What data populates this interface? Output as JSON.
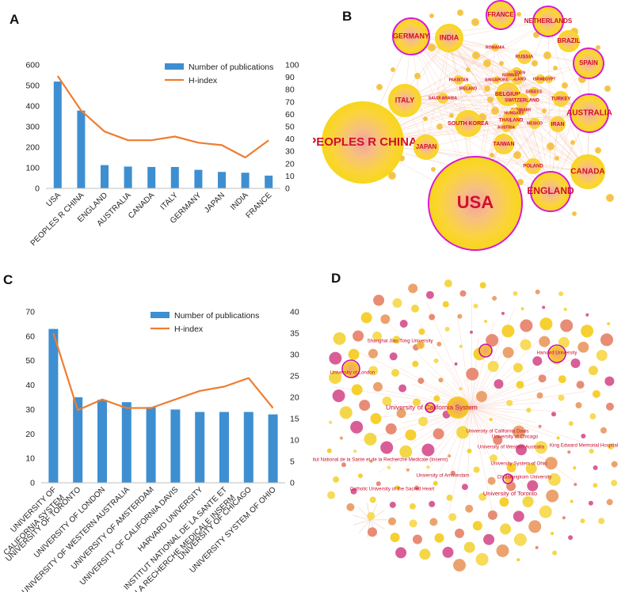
{
  "panels": {
    "a": "A",
    "b": "B",
    "c": "C",
    "d": "D"
  },
  "chart_data": [
    {
      "panel": "A",
      "type": "bar",
      "categories": [
        "USA",
        "PEOPLES R CHINA",
        "ENGLAND",
        "AUSTRALIA",
        "CANADA",
        "ITALY",
        "GERMANY",
        "JAPAN",
        "INDIA",
        "FRANCE"
      ],
      "series": [
        {
          "name": "Number of publications",
          "axis": "left",
          "kind": "bar",
          "color": "#3d8fd1",
          "values": [
            519,
            378,
            113,
            106,
            104,
            104,
            90,
            80,
            76,
            62
          ]
        },
        {
          "name": "H-index",
          "axis": "right",
          "kind": "line",
          "color": "#ef7d31",
          "values": [
            91,
            63,
            46,
            39,
            39,
            42,
            37,
            35,
            25,
            39
          ]
        }
      ],
      "ylim_left": [
        0,
        600
      ],
      "yticks_left": [
        0,
        100,
        200,
        300,
        400,
        500,
        600
      ],
      "ylim_right": [
        0,
        100
      ],
      "yticks_right": [
        0,
        10,
        20,
        30,
        40,
        50,
        60,
        70,
        80,
        90,
        100
      ],
      "legend_position": "top-right"
    },
    {
      "panel": "C",
      "type": "bar",
      "categories": [
        [
          "UNIVERSITY OF",
          "CALIFORNIA SYSTEM"
        ],
        [
          "UNIVERSITY OF TORONTO"
        ],
        [
          "UNIVERSITY OF LONDON"
        ],
        [
          "UNIVERSITY OF WESTERN AUSTRALIA"
        ],
        [
          "UNIVERSITY OF AMSTERDAM"
        ],
        [
          "UNIVERSITY OF CALIFORNIA DAVIS"
        ],
        [
          "HARVARD UNIVERSITY"
        ],
        [
          "INSTITUT NATIONAL DE LA SANTE ET",
          "DE LA RECHERCHE MEDICALE INSERM"
        ],
        [
          "UNIVERSITY OF CHICAGO"
        ],
        [
          "UNIVERSITY SYSTEM OF OHIO"
        ]
      ],
      "series": [
        {
          "name": "Number of publications",
          "axis": "left",
          "kind": "bar",
          "color": "#3d8fd1",
          "values": [
            63,
            35,
            34,
            33,
            31,
            30,
            29,
            29,
            29,
            28
          ]
        },
        {
          "name": "H-index",
          "axis": "right",
          "kind": "line",
          "color": "#ef7d31",
          "values": [
            35,
            17,
            19.5,
            17.5,
            17.5,
            19.5,
            21.5,
            22.5,
            24.5,
            17.5
          ]
        }
      ],
      "ylim_left": [
        0,
        70
      ],
      "yticks_left": [
        0,
        10,
        20,
        30,
        40,
        50,
        60,
        70
      ],
      "ylim_right": [
        0,
        40
      ],
      "yticks_right": [
        0,
        5,
        10,
        15,
        20,
        25,
        30,
        35,
        40
      ],
      "legend_position": "top-right"
    }
  ],
  "network_b": {
    "colors": {
      "node_fill": "#fbd000",
      "node_core": "#f4a3a0",
      "ring": "#d61ad2",
      "label": "#d0102a"
    },
    "nodes": [
      {
        "label": "USA",
        "highlight": true
      },
      {
        "label": "PEOPLES R CHINA",
        "highlight": false
      },
      {
        "label": "ENGLAND",
        "highlight": true
      },
      {
        "label": "CANADA",
        "highlight": false
      },
      {
        "label": "AUSTRALIA",
        "highlight": true
      },
      {
        "label": "GERMANY",
        "highlight": true
      },
      {
        "label": "FRANCE",
        "highlight": true
      },
      {
        "label": "NETHERLANDS",
        "highlight": true
      },
      {
        "label": "SPAIN",
        "highlight": true
      },
      {
        "label": "ITALY",
        "highlight": false
      },
      {
        "label": "INDIA",
        "highlight": false
      },
      {
        "label": "JAPAN",
        "highlight": false
      },
      {
        "label": "BRAZIL",
        "highlight": false
      },
      {
        "label": "SOUTH KOREA",
        "highlight": false
      },
      {
        "label": "IRAN",
        "highlight": false
      },
      {
        "label": "TAIWAN",
        "highlight": false
      },
      {
        "label": "BELGIUM",
        "highlight": false
      },
      {
        "label": "TURKEY",
        "highlight": false
      },
      {
        "label": "SWITZERLAND",
        "highlight": false
      },
      {
        "label": "THAILAND",
        "highlight": false
      },
      {
        "label": "POLAND",
        "highlight": false
      },
      {
        "label": "RUSSIA",
        "highlight": false
      },
      {
        "label": "SWEDEN",
        "highlight": false
      },
      {
        "label": "FINLAND",
        "highlight": false
      },
      {
        "label": "ISRAEL",
        "highlight": false
      },
      {
        "label": "NORWAY",
        "highlight": false
      },
      {
        "label": "GREECE",
        "highlight": false
      },
      {
        "label": "DENMARK",
        "highlight": false
      },
      {
        "label": "HUNGARY",
        "highlight": false
      },
      {
        "label": "AUSTRIA",
        "highlight": false
      },
      {
        "label": "MEXICO",
        "highlight": false
      },
      {
        "label": "SAUDI ARABIA",
        "highlight": false
      },
      {
        "label": "PAKISTAN",
        "highlight": false
      },
      {
        "label": "IRELAND",
        "highlight": false
      },
      {
        "label": "ROMANIA",
        "highlight": false
      },
      {
        "label": "SINGAPORE",
        "highlight": false
      },
      {
        "label": "EGYPT",
        "highlight": false
      }
    ]
  },
  "network_d": {
    "colors": {
      "node_fill": "#f5cc1f",
      "node_alt": "#e99a62",
      "ring": "#c80fb0",
      "label": "#d0102a"
    },
    "nodes": [
      {
        "label": "Shanghai Jiao Tong University"
      },
      {
        "label": "Harvard University"
      },
      {
        "label": "University of London"
      },
      {
        "label": "University of California System"
      },
      {
        "label": "University of California Davis"
      },
      {
        "label": "University of Chicago"
      },
      {
        "label": "University of Western Australia"
      },
      {
        "label": "King Edward Memorial Hospital"
      },
      {
        "label": "Institut National de la Sante et de la Recherche Medicale (Inserm)"
      },
      {
        "label": "University System of Ohio"
      },
      {
        "label": "University of Amsterdam"
      },
      {
        "label": "Chulalongkorn University"
      },
      {
        "label": "Catholic University of the Sacred Heart"
      },
      {
        "label": "University of Toronto"
      }
    ]
  }
}
